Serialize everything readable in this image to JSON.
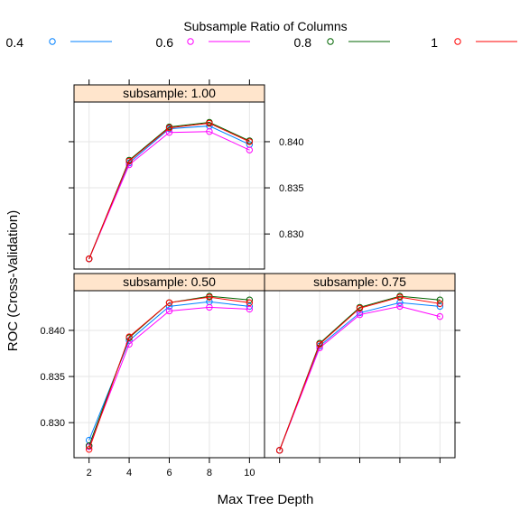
{
  "chart_data": {
    "type": "line",
    "layout": "trellis",
    "legend_title": "Subsample Ratio of Columns",
    "legend_position": "top",
    "xlabel": "Max Tree Depth",
    "ylabel": "ROC (Cross-Validation)",
    "x": [
      2,
      4,
      6,
      8,
      10
    ],
    "x_ticks": [
      2,
      4,
      6,
      8,
      10
    ],
    "xlim": [
      1.25,
      10.75
    ],
    "ylim": [
      0.8262,
      0.8443
    ],
    "y_ticks": [
      0.83,
      0.835,
      0.84
    ],
    "y_tick_labels": [
      "0.830",
      "0.835",
      "0.840"
    ],
    "grid": true,
    "series_styles": [
      {
        "name": "0.4",
        "color": "#0080ff"
      },
      {
        "name": "0.6",
        "color": "#ff00ff"
      },
      {
        "name": "0.8",
        "color": "#006400"
      },
      {
        "name": "1",
        "color": "#ff0000"
      }
    ],
    "panels": [
      {
        "strip": "subsample: 1.00",
        "series": [
          {
            "name": "0.4",
            "values": [
              0.8273,
              0.8377,
              0.8414,
              0.8417,
              0.8397
            ]
          },
          {
            "name": "0.6",
            "values": [
              0.8273,
              0.8375,
              0.841,
              0.8411,
              0.8391
            ]
          },
          {
            "name": "0.8",
            "values": [
              0.8273,
              0.838,
              0.8416,
              0.8421,
              0.8401
            ]
          },
          {
            "name": "1",
            "values": [
              0.8273,
              0.8379,
              0.8415,
              0.842,
              0.84
            ]
          }
        ]
      },
      {
        "strip": "subsample: 0.50",
        "series": [
          {
            "name": "0.4",
            "values": [
              0.8281,
              0.8389,
              0.8426,
              0.8431,
              0.8426
            ]
          },
          {
            "name": "0.6",
            "values": [
              0.8274,
              0.8385,
              0.8421,
              0.8425,
              0.8423
            ]
          },
          {
            "name": "0.8",
            "values": [
              0.8275,
              0.8392,
              0.843,
              0.8437,
              0.8433
            ]
          },
          {
            "name": "1",
            "values": [
              0.8271,
              0.8393,
              0.843,
              0.8436,
              0.843
            ]
          }
        ]
      },
      {
        "strip": "subsample: 0.75",
        "series": [
          {
            "name": "0.4",
            "values": [
              0.827,
              0.8383,
              0.8419,
              0.843,
              0.8426
            ]
          },
          {
            "name": "0.6",
            "values": [
              0.827,
              0.8381,
              0.8417,
              0.8426,
              0.8415
            ]
          },
          {
            "name": "0.8",
            "values": [
              0.827,
              0.8386,
              0.8425,
              0.8437,
              0.8433
            ]
          },
          {
            "name": "1",
            "values": [
              0.827,
              0.8385,
              0.8424,
              0.8436,
              0.8429
            ]
          }
        ]
      }
    ]
  }
}
